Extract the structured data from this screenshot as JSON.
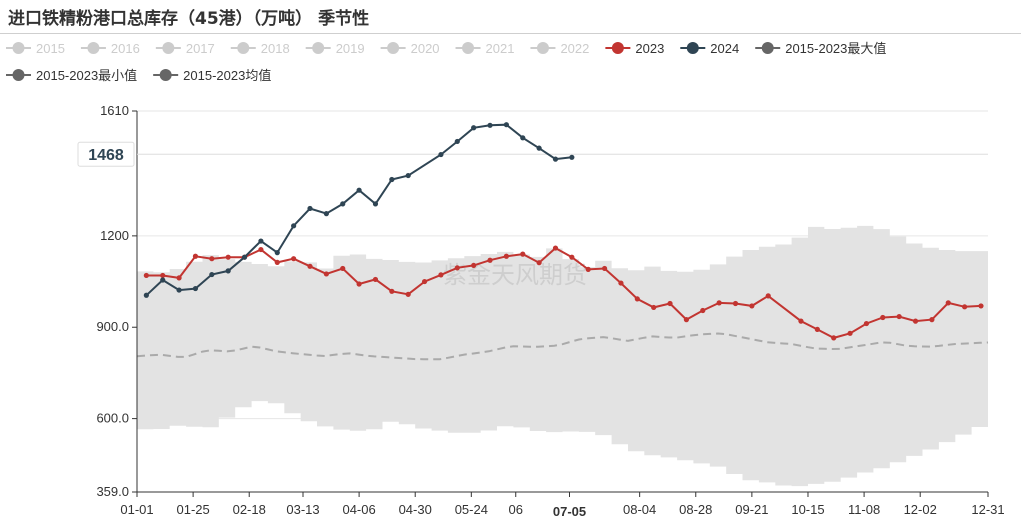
{
  "title": "进口铁精粉港口总库存（45港）（万吨） 季节性",
  "watermark": "紫金天风期货",
  "colors": {
    "inactive": "#cccccc",
    "series_2023": "#c23531",
    "series_2024": "#2f4554",
    "band": "#e3e3e3",
    "mean": "#aaaaaa",
    "grid": "#e6e6e6",
    "axis": "#333333"
  },
  "chart_data": {
    "type": "line",
    "ylim": [
      359.0,
      1610
    ],
    "y_ticks": [
      {
        "value": 359.0,
        "label": "359.0"
      },
      {
        "value": 600.0,
        "label": "600.0"
      },
      {
        "value": 900.0,
        "label": "900.0"
      },
      {
        "value": 1200,
        "label": "1200"
      },
      {
        "value": 1610,
        "label": "1610"
      }
    ],
    "x_range": [
      0,
      364
    ],
    "x_ticks": [
      {
        "day": 0,
        "label": "01-01"
      },
      {
        "day": 24,
        "label": "01-25"
      },
      {
        "day": 48,
        "label": "02-18"
      },
      {
        "day": 71,
        "label": "03-13"
      },
      {
        "day": 95,
        "label": "04-06"
      },
      {
        "day": 119,
        "label": "04-30"
      },
      {
        "day": 143,
        "label": "05-24"
      },
      {
        "day": 162,
        "label": "06"
      },
      {
        "day": 185,
        "label": "07-05",
        "highlight": true
      },
      {
        "day": 215,
        "label": "08-04"
      },
      {
        "day": 239,
        "label": "08-28"
      },
      {
        "day": 263,
        "label": "09-21"
      },
      {
        "day": 287,
        "label": "10-15"
      },
      {
        "day": 311,
        "label": "11-08"
      },
      {
        "day": 335,
        "label": "12-02"
      },
      {
        "day": 364,
        "label": "12-31"
      }
    ],
    "y_pointer": {
      "value": 1468,
      "label": "1468"
    },
    "legend": [
      {
        "name": "2015",
        "active": false
      },
      {
        "name": "2016",
        "active": false
      },
      {
        "name": "2017",
        "active": false
      },
      {
        "name": "2018",
        "active": false
      },
      {
        "name": "2019",
        "active": false
      },
      {
        "name": "2020",
        "active": false
      },
      {
        "name": "2021",
        "active": false
      },
      {
        "name": "2022",
        "active": false
      },
      {
        "name": "2023",
        "active": true,
        "color": "#c23531"
      },
      {
        "name": "2024",
        "active": true,
        "color": "#2f4554"
      },
      {
        "name": "2015-2023最大值",
        "active": true,
        "color": "#666666"
      },
      {
        "name": "2015-2023最小值",
        "active": true,
        "color": "#666666"
      },
      {
        "name": "2015-2023均值",
        "active": true,
        "color": "#666666"
      }
    ],
    "series": [
      {
        "name": "2023",
        "points": [
          [
            4,
            1070
          ],
          [
            11,
            1070
          ],
          [
            18,
            1062
          ],
          [
            25,
            1133
          ],
          [
            32,
            1125
          ],
          [
            39,
            1130
          ],
          [
            46,
            1130
          ],
          [
            53,
            1155
          ],
          [
            60,
            1113
          ],
          [
            67,
            1125
          ],
          [
            74,
            1100
          ],
          [
            81,
            1075
          ],
          [
            88,
            1093
          ],
          [
            95,
            1042
          ],
          [
            102,
            1057
          ],
          [
            109,
            1018
          ],
          [
            116,
            1008
          ],
          [
            123,
            1050
          ],
          [
            130,
            1072
          ],
          [
            137,
            1095
          ],
          [
            144,
            1103
          ],
          [
            151,
            1120
          ],
          [
            158,
            1133
          ],
          [
            165,
            1140
          ],
          [
            172,
            1112
          ],
          [
            179,
            1160
          ],
          [
            186,
            1130
          ],
          [
            193,
            1090
          ],
          [
            200,
            1093
          ],
          [
            207,
            1045
          ],
          [
            214,
            993
          ],
          [
            221,
            965
          ],
          [
            228,
            978
          ],
          [
            235,
            925
          ],
          [
            242,
            955
          ],
          [
            249,
            980
          ],
          [
            256,
            978
          ],
          [
            263,
            970
          ],
          [
            270,
            1003
          ],
          [
            284,
            920
          ],
          [
            291,
            893
          ],
          [
            298,
            865
          ],
          [
            305,
            880
          ],
          [
            312,
            912
          ],
          [
            319,
            932
          ],
          [
            326,
            935
          ],
          [
            333,
            920
          ],
          [
            340,
            925
          ],
          [
            347,
            980
          ],
          [
            354,
            967
          ],
          [
            361,
            970
          ]
        ]
      },
      {
        "name": "2024",
        "points": [
          [
            4,
            1005
          ],
          [
            11,
            1055
          ],
          [
            18,
            1022
          ],
          [
            25,
            1027
          ],
          [
            32,
            1073
          ],
          [
            39,
            1085
          ],
          [
            46,
            1130
          ],
          [
            53,
            1183
          ],
          [
            60,
            1145
          ],
          [
            67,
            1233
          ],
          [
            74,
            1290
          ],
          [
            81,
            1273
          ],
          [
            88,
            1305
          ],
          [
            95,
            1350
          ],
          [
            102,
            1305
          ],
          [
            109,
            1385
          ],
          [
            116,
            1398
          ],
          [
            130,
            1467
          ],
          [
            137,
            1510
          ],
          [
            144,
            1555
          ],
          [
            151,
            1563
          ],
          [
            158,
            1565
          ],
          [
            165,
            1522
          ],
          [
            172,
            1488
          ],
          [
            179,
            1452
          ],
          [
            186,
            1458
          ]
        ]
      },
      {
        "name": "2015-2023最大值",
        "points": [
          [
            0,
            1085
          ],
          [
            10,
            1080
          ],
          [
            20,
            1095
          ],
          [
            30,
            1140
          ],
          [
            40,
            1120
          ],
          [
            50,
            1110
          ],
          [
            60,
            1100
          ],
          [
            70,
            1125
          ],
          [
            80,
            1090
          ],
          [
            90,
            1150
          ],
          [
            100,
            1125
          ],
          [
            110,
            1120
          ],
          [
            120,
            1110
          ],
          [
            130,
            1120
          ],
          [
            140,
            1130
          ],
          [
            150,
            1140
          ],
          [
            160,
            1150
          ],
          [
            170,
            1125
          ],
          [
            180,
            1165
          ],
          [
            190,
            1090
          ],
          [
            200,
            1120
          ],
          [
            210,
            1080
          ],
          [
            220,
            1100
          ],
          [
            230,
            1080
          ],
          [
            240,
            1085
          ],
          [
            250,
            1110
          ],
          [
            260,
            1150
          ],
          [
            270,
            1165
          ],
          [
            280,
            1175
          ],
          [
            290,
            1230
          ],
          [
            300,
            1220
          ],
          [
            310,
            1235
          ],
          [
            320,
            1220
          ],
          [
            330,
            1180
          ],
          [
            340,
            1160
          ],
          [
            350,
            1150
          ],
          [
            364,
            1150
          ]
        ]
      },
      {
        "name": "2015-2023最小值",
        "points": [
          [
            0,
            565
          ],
          [
            10,
            565
          ],
          [
            20,
            580
          ],
          [
            30,
            565
          ],
          [
            40,
            610
          ],
          [
            50,
            660
          ],
          [
            60,
            650
          ],
          [
            70,
            600
          ],
          [
            80,
            575
          ],
          [
            90,
            560
          ],
          [
            100,
            560
          ],
          [
            110,
            595
          ],
          [
            120,
            570
          ],
          [
            130,
            560
          ],
          [
            140,
            550
          ],
          [
            150,
            560
          ],
          [
            160,
            580
          ],
          [
            170,
            560
          ],
          [
            180,
            555
          ],
          [
            190,
            560
          ],
          [
            200,
            545
          ],
          [
            210,
            500
          ],
          [
            220,
            480
          ],
          [
            230,
            470
          ],
          [
            240,
            455
          ],
          [
            250,
            440
          ],
          [
            260,
            400
          ],
          [
            270,
            390
          ],
          [
            280,
            375
          ],
          [
            290,
            385
          ],
          [
            300,
            395
          ],
          [
            310,
            420
          ],
          [
            320,
            440
          ],
          [
            330,
            470
          ],
          [
            340,
            500
          ],
          [
            350,
            535
          ],
          [
            364,
            585
          ]
        ]
      },
      {
        "name": "2015-2023均值",
        "points": [
          [
            0,
            805
          ],
          [
            10,
            810
          ],
          [
            20,
            800
          ],
          [
            30,
            825
          ],
          [
            40,
            820
          ],
          [
            50,
            838
          ],
          [
            60,
            820
          ],
          [
            70,
            812
          ],
          [
            80,
            805
          ],
          [
            90,
            815
          ],
          [
            100,
            805
          ],
          [
            110,
            800
          ],
          [
            120,
            795
          ],
          [
            130,
            795
          ],
          [
            140,
            810
          ],
          [
            150,
            820
          ],
          [
            160,
            838
          ],
          [
            170,
            835
          ],
          [
            180,
            840
          ],
          [
            190,
            862
          ],
          [
            200,
            868
          ],
          [
            210,
            855
          ],
          [
            220,
            870
          ],
          [
            230,
            865
          ],
          [
            240,
            876
          ],
          [
            250,
            880
          ],
          [
            260,
            865
          ],
          [
            270,
            850
          ],
          [
            280,
            845
          ],
          [
            290,
            830
          ],
          [
            300,
            828
          ],
          [
            310,
            840
          ],
          [
            320,
            852
          ],
          [
            330,
            838
          ],
          [
            340,
            836
          ],
          [
            350,
            845
          ],
          [
            364,
            850
          ]
        ]
      }
    ]
  }
}
